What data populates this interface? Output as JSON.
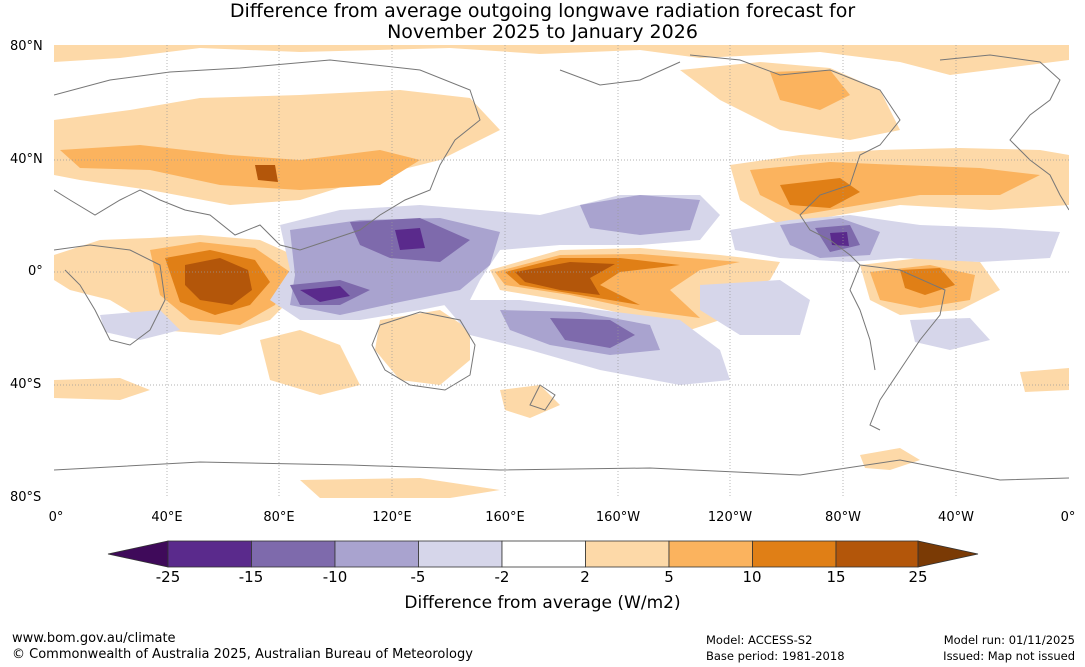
{
  "title": {
    "line1": "Difference from average outgoing longwave radiation forecast for",
    "line2": "November 2025 to January 2026"
  },
  "map": {
    "lat_labels": [
      "80°N",
      "40°N",
      "0°",
      "40°S",
      "80°S"
    ],
    "lon_labels": [
      "0°",
      "40°E",
      "80°E",
      "120°E",
      "160°E",
      "160°W",
      "120°W",
      "80°W",
      "40°W",
      "0°"
    ],
    "colors": {
      "p25": "#3f0a5a",
      "p15": "#5a2a8c",
      "p10": "#7e6aac",
      "p5": "#a9a3cf",
      "p2": "#d6d6ea",
      "zero": "#ffffff",
      "o2": "#fdd9a8",
      "o5": "#fbb35e",
      "o10": "#e07f16",
      "o15": "#b3560a",
      "o25": "#7a3a05",
      "coast": "#777777",
      "grid": "#999999"
    }
  },
  "colorbar": {
    "ticks": [
      "-25",
      "-15",
      "-10",
      "-5",
      "-2",
      "2",
      "5",
      "10",
      "15",
      "25"
    ],
    "label": "Difference from average (W/m2)"
  },
  "footer": {
    "url": "www.bom.gov.au/climate",
    "copyright": "© Commonwealth of Australia 2025, Australian Bureau of Meteorology",
    "model": "Model: ACCESS-S2",
    "base_period": "Base period: 1981-2018",
    "model_run": "Model run: 01/11/2025",
    "issued": "Issued: Map not issued"
  }
}
